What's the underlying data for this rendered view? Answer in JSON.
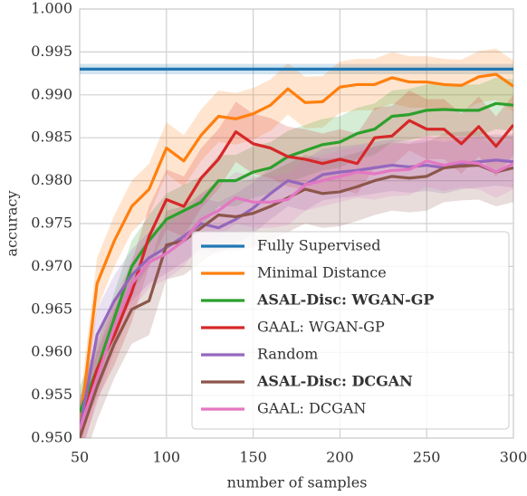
{
  "chart_data": {
    "type": "line",
    "x_label": "number of samples",
    "y_label": "accuracy",
    "x": [
      50,
      60,
      70,
      80,
      90,
      100,
      110,
      120,
      130,
      140,
      150,
      160,
      170,
      180,
      190,
      200,
      210,
      220,
      230,
      240,
      250,
      260,
      270,
      280,
      290,
      300
    ],
    "xlim": [
      50,
      300
    ],
    "xticks": [
      50,
      100,
      150,
      200,
      250,
      300
    ],
    "ylim": [
      0.95,
      1.0
    ],
    "yticks": [
      {
        "value": 0.95,
        "label": "0.950"
      },
      {
        "value": 0.955,
        "label": "0.955"
      },
      {
        "value": 0.96,
        "label": "0.960"
      },
      {
        "value": 0.965,
        "label": "0.965"
      },
      {
        "value": 0.97,
        "label": "0.970"
      },
      {
        "value": 0.975,
        "label": "0.975"
      },
      {
        "value": 0.98,
        "label": "0.980"
      },
      {
        "value": 0.985,
        "label": "0.985"
      },
      {
        "value": 0.99,
        "label": "0.990"
      },
      {
        "value": 0.995,
        "label": "0.995"
      },
      {
        "value": 1.0,
        "label": "1.000"
      }
    ],
    "grid": true,
    "legend": "lower right",
    "series": [
      {
        "name": "Fully Supervised",
        "color": "#1f77b4",
        "bold": false,
        "std": 0.0006,
        "values": [
          0.993,
          0.993,
          0.993,
          0.993,
          0.993,
          0.993,
          0.993,
          0.993,
          0.993,
          0.993,
          0.993,
          0.993,
          0.993,
          0.993,
          0.993,
          0.993,
          0.993,
          0.993,
          0.993,
          0.993,
          0.993,
          0.993,
          0.993,
          0.993,
          0.993,
          0.993
        ]
      },
      {
        "name": "Minimal Distance",
        "color": "#ff7f0e",
        "bold": false,
        "std": 0.003,
        "values": [
          0.951,
          0.968,
          0.973,
          0.977,
          0.979,
          0.9838,
          0.9823,
          0.9853,
          0.9875,
          0.9872,
          0.9878,
          0.9888,
          0.9907,
          0.9891,
          0.9892,
          0.9909,
          0.9912,
          0.9912,
          0.992,
          0.9915,
          0.9915,
          0.9912,
          0.9911,
          0.9921,
          0.9924,
          0.991
        ]
      },
      {
        "name": "ASAL-Disc:  WGAN-GP",
        "color": "#2ca02c",
        "bold": true,
        "std": 0.003,
        "values": [
          0.953,
          0.958,
          0.964,
          0.97,
          0.973,
          0.9755,
          0.9765,
          0.9775,
          0.98,
          0.98,
          0.981,
          0.9815,
          0.9828,
          0.9835,
          0.9842,
          0.9845,
          0.9855,
          0.986,
          0.9875,
          0.9877,
          0.9882,
          0.9883,
          0.9882,
          0.9882,
          0.989,
          0.9888
        ]
      },
      {
        "name": "GAAL: WGAN-GP",
        "color": "#d62728",
        "bold": false,
        "std": 0.0035,
        "values": [
          0.951,
          0.958,
          0.962,
          0.967,
          0.9735,
          0.9778,
          0.977,
          0.9803,
          0.9825,
          0.9857,
          0.9843,
          0.9838,
          0.9828,
          0.9825,
          0.982,
          0.9825,
          0.982,
          0.985,
          0.9852,
          0.987,
          0.986,
          0.986,
          0.9843,
          0.9863,
          0.984,
          0.9865
        ]
      },
      {
        "name": "Random",
        "color": "#9467bd",
        "bold": false,
        "std": 0.003,
        "values": [
          0.951,
          0.962,
          0.966,
          0.969,
          0.971,
          0.9722,
          0.9735,
          0.975,
          0.9745,
          0.9755,
          0.9768,
          0.9785,
          0.98,
          0.9795,
          0.9807,
          0.981,
          0.9812,
          0.9815,
          0.9818,
          0.9816,
          0.9818,
          0.9815,
          0.982,
          0.9822,
          0.9824,
          0.9822
        ]
      },
      {
        "name": "ASAL-Disc:  DCGAN",
        "color": "#8c564b",
        "bold": true,
        "std": 0.004,
        "values": [
          0.95,
          0.956,
          0.961,
          0.965,
          0.966,
          0.9725,
          0.973,
          0.9745,
          0.976,
          0.9758,
          0.9762,
          0.977,
          0.978,
          0.979,
          0.9785,
          0.9787,
          0.9793,
          0.98,
          0.9805,
          0.9803,
          0.9805,
          0.9815,
          0.9817,
          0.9818,
          0.981,
          0.9815
        ]
      },
      {
        "name": "GAAL: DCGAN",
        "color": "#e377c2",
        "bold": false,
        "std": 0.003,
        "values": [
          0.951,
          0.957,
          0.963,
          0.968,
          0.9705,
          0.9715,
          0.973,
          0.9755,
          0.9765,
          0.978,
          0.9775,
          0.9775,
          0.9778,
          0.9795,
          0.98,
          0.9805,
          0.981,
          0.9808,
          0.9812,
          0.9813,
          0.9823,
          0.9818,
          0.9822,
          0.982,
          0.981,
          0.982
        ]
      }
    ]
  }
}
